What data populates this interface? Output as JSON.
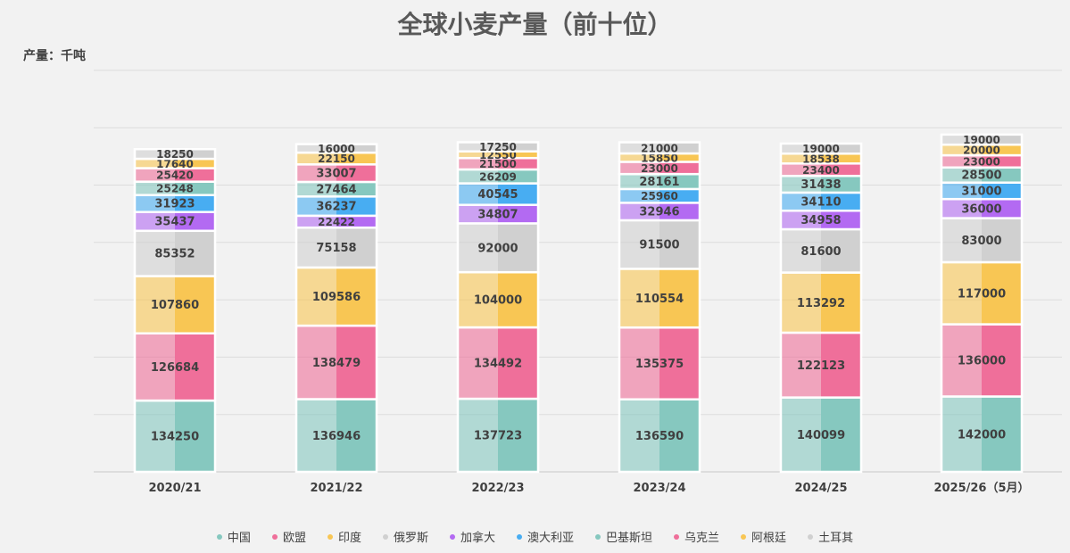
{
  "chart_data": {
    "type": "bar",
    "stacked": true,
    "title": "全球小麦产量（前十位）",
    "ylabel": "产量：千吨",
    "categories": [
      "2020/21",
      "2021/22",
      "2022/23",
      "2023/24",
      "2024/25",
      "2025/26（5月）"
    ],
    "grid": true,
    "legend_position": "bottom",
    "series": [
      {
        "name": "中国",
        "color": "#86c8bf",
        "values": [
          134250,
          136946,
          137723,
          136590,
          140099,
          142000
        ]
      },
      {
        "name": "欧盟",
        "color": "#ef6f9a",
        "values": [
          126684,
          138479,
          134492,
          135375,
          122123,
          136000
        ]
      },
      {
        "name": "印度",
        "color": "#f8c654",
        "values": [
          107860,
          109586,
          104000,
          110554,
          113292,
          117000
        ]
      },
      {
        "name": "俄罗斯",
        "color": "#d0d0d0",
        "values": [
          85352,
          75158,
          92000,
          91500,
          81600,
          83000
        ]
      },
      {
        "name": "加拿大",
        "color": "#b36af2",
        "values": [
          35437,
          22422,
          34807,
          32946,
          34958,
          36000
        ]
      },
      {
        "name": "澳大利亚",
        "color": "#48adf2",
        "values": [
          31923,
          36237,
          40545,
          25960,
          34110,
          31000
        ]
      },
      {
        "name": "巴基斯坦",
        "color": "#86c8bf",
        "values": [
          25248,
          27464,
          26209,
          28161,
          31438,
          28500
        ]
      },
      {
        "name": "乌克兰",
        "color": "#ef6f9a",
        "values": [
          25420,
          33007,
          21500,
          23000,
          23400,
          23000
        ]
      },
      {
        "name": "阿根廷",
        "color": "#f8c654",
        "values": [
          17640,
          22150,
          12550,
          15850,
          18538,
          20000
        ]
      },
      {
        "name": "土耳其",
        "color": "#d0d0d0",
        "values": [
          18250,
          16000,
          17250,
          21000,
          19000,
          19000
        ]
      }
    ]
  }
}
